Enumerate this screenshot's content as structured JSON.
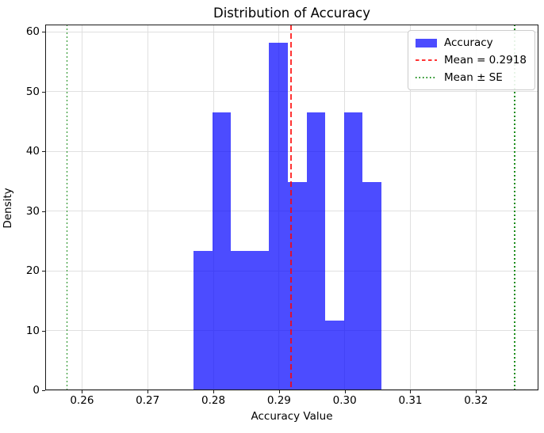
{
  "chart_data": {
    "type": "bar",
    "title": "Distribution of Accuracy",
    "xlabel": "Accuracy Value",
    "ylabel": "Density",
    "series_name": "Accuracy",
    "bin_edges": [
      0.277,
      0.2799,
      0.2827,
      0.2856,
      0.2884,
      0.2913,
      0.2942,
      0.297,
      0.2999,
      0.3027,
      0.3056
    ],
    "densities": [
      23.3,
      46.5,
      23.3,
      23.3,
      58.1,
      34.9,
      46.5,
      11.6,
      46.5,
      34.9
    ],
    "mean": 0.2918,
    "se_lines": [
      0.2577,
      0.3259
    ],
    "xticks": [
      0.26,
      0.27,
      0.28,
      0.29,
      0.3,
      0.31,
      0.32
    ],
    "xtick_labels": [
      "0.26",
      "0.27",
      "0.28",
      "0.29",
      "0.30",
      "0.31",
      "0.32"
    ],
    "yticks": [
      0,
      10,
      20,
      30,
      40,
      50,
      60
    ],
    "ytick_labels": [
      "0",
      "10",
      "20",
      "30",
      "40",
      "50",
      "60"
    ],
    "xlim": [
      0.2544,
      0.3295
    ],
    "ylim": [
      0,
      61.2
    ],
    "grid": true,
    "legend_position": "upper-right",
    "legend": [
      {
        "label": "Accuracy",
        "marker": "patch",
        "color": "#0000ff",
        "alpha": 0.7
      },
      {
        "label": "Mean = 0.2918",
        "marker": "dashed-line",
        "color": "#ff0000",
        "alpha": 0.8
      },
      {
        "label": "Mean ± SE",
        "marker": "dotted-line",
        "color": "#008000",
        "alpha": 0.9
      }
    ],
    "colors": {
      "bar": "#0000ff",
      "bar_alpha": 0.7,
      "mean_line": "#ff0000",
      "mean_line_alpha": 0.8,
      "se_line": "#008000",
      "se_line_alpha": 0.9,
      "grid": "#e0e0e0",
      "spine": "#1a1a1a",
      "text": "#000000"
    }
  }
}
